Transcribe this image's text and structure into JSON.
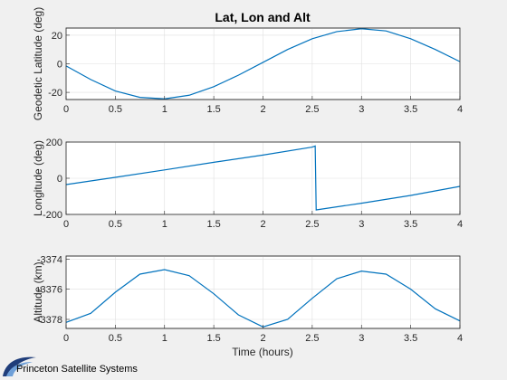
{
  "colors": {
    "background": "#f0f0f0",
    "axes_bg": "#ffffff",
    "line": "#0072bd",
    "grid": "#dfdfdf"
  },
  "logo": {
    "text": "Princeton Satellite Systems",
    "icon": "psys-swoosh-logo-icon"
  },
  "chart_data": [
    {
      "type": "line",
      "title": "Lat, Lon and Alt",
      "xlabel": "",
      "ylabel": "Geodetic Latitude (deg)",
      "xlim": [
        0,
        4
      ],
      "ylim": [
        -25,
        25
      ],
      "grid": true,
      "xticks": [
        0,
        0.5,
        1,
        1.5,
        2,
        2.5,
        3,
        3.5,
        4
      ],
      "xticklabels": [
        "0",
        "0.5",
        "1",
        "1.5",
        "2",
        "2.5",
        "3",
        "3.5",
        "4"
      ],
      "yticks": [
        -20,
        0,
        20
      ],
      "yticklabels": [
        "-20",
        "0",
        "20"
      ],
      "series": [
        {
          "x": [
            0,
            0.25,
            0.5,
            0.75,
            1.0,
            1.25,
            1.5,
            1.75,
            2.0,
            2.25,
            2.5,
            2.75,
            3.0,
            3.25,
            3.5,
            3.75,
            4.0
          ],
          "y": [
            -1.5,
            -11,
            -19,
            -23.5,
            -24.5,
            -22,
            -16,
            -8,
            1,
            10,
            17.5,
            22.5,
            24.5,
            23,
            17.5,
            10,
            1.5
          ]
        }
      ]
    },
    {
      "type": "line",
      "title": "",
      "xlabel": "",
      "ylabel": "Longitude (deg)",
      "xlim": [
        0,
        4
      ],
      "ylim": [
        -200,
        200
      ],
      "grid": true,
      "xticks": [
        0,
        0.5,
        1,
        1.5,
        2,
        2.5,
        3,
        3.5,
        4
      ],
      "xticklabels": [
        "0",
        "0.5",
        "1",
        "1.5",
        "2",
        "2.5",
        "3",
        "3.5",
        "4"
      ],
      "yticks": [
        -200,
        0,
        200
      ],
      "yticklabels": [
        "-200",
        "0",
        "200"
      ],
      "series": [
        {
          "x": [
            0,
            0.5,
            1.0,
            1.5,
            2.0,
            2.5,
            2.53,
            2.54,
            3.0,
            3.5,
            4.0
          ],
          "y": [
            -35,
            5,
            46,
            88,
            128,
            172,
            178,
            -175,
            -138,
            -95,
            -45
          ]
        }
      ]
    },
    {
      "type": "line",
      "title": "",
      "xlabel": "Time (hours)",
      "ylabel": "Altitude (km)",
      "xlim": [
        0,
        4
      ],
      "ylim": [
        -3378.6,
        -3373.8
      ],
      "grid": true,
      "xticks": [
        0,
        0.5,
        1,
        1.5,
        2,
        2.5,
        3,
        3.5,
        4
      ],
      "xticklabels": [
        "0",
        "0.5",
        "1",
        "1.5",
        "2",
        "2.5",
        "3",
        "3.5",
        "4"
      ],
      "yticks": [
        -3378,
        -3376,
        -3374
      ],
      "yticklabels": [
        "-3378",
        "-3376",
        "-3374"
      ],
      "series": [
        {
          "x": [
            0,
            0.25,
            0.5,
            0.75,
            1.0,
            1.25,
            1.5,
            1.75,
            2.0,
            2.25,
            2.5,
            2.75,
            3.0,
            3.25,
            3.5,
            3.75,
            4.0
          ],
          "y": [
            -3378.2,
            -3377.6,
            -3376.2,
            -3375.0,
            -3374.7,
            -3375.1,
            -3376.3,
            -3377.7,
            -3378.5,
            -3378.0,
            -3376.6,
            -3375.3,
            -3374.8,
            -3375.0,
            -3376.0,
            -3377.3,
            -3378.1
          ]
        }
      ]
    }
  ]
}
